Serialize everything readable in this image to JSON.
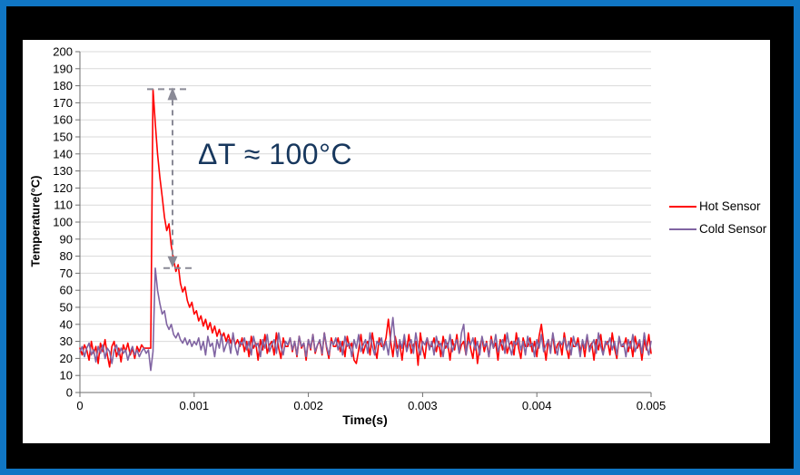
{
  "frame": {
    "border_color": "#1076C4",
    "mat_color": "#000000",
    "panel_color": "#FFFFFF"
  },
  "chart_data": {
    "type": "line",
    "title": "",
    "xlabel": "Time(s)",
    "ylabel": "Temperature(°C)",
    "xlim": [
      0,
      0.005
    ],
    "ylim": [
      0,
      200
    ],
    "grid": "horizontal",
    "gridline_color": "#D9D9D9",
    "axis_color": "#6E6E6E",
    "tick_label_color": "#000000",
    "y_tick_step": 10,
    "x_ticks": [
      0,
      0.001,
      0.002,
      0.003,
      0.004,
      0.005
    ],
    "x_tick_labels": [
      "0",
      "0.001",
      "0.002",
      "0.003",
      "0.004",
      "0.005"
    ],
    "legend_position": "right",
    "x_start": 0,
    "x_step": 2e-05,
    "annotation": {
      "text": "ΔT ≈ 100°C",
      "color": "#17375D",
      "arrow_color": "#8A8A96",
      "from_value": 178,
      "to_value": 73
    },
    "series": [
      {
        "name": "Hot Sensor",
        "color": "#FF0000",
        "peak_value": 178,
        "peak_time": 0.00064,
        "baseline": 26,
        "values": [
          26,
          22,
          28,
          25,
          19,
          30,
          23,
          27,
          17,
          29,
          24,
          31,
          22,
          15,
          27,
          30,
          21,
          26,
          18,
          28,
          24,
          29,
          22,
          26,
          20,
          27,
          24,
          28,
          26,
          26,
          26,
          26,
          178,
          158,
          140,
          126,
          115,
          103,
          95,
          99,
          86,
          78,
          71,
          75,
          64,
          59,
          62,
          54,
          50,
          53,
          46,
          48,
          42,
          45,
          39,
          43,
          37,
          41,
          35,
          39,
          33,
          37,
          32,
          35,
          30,
          34,
          29,
          33,
          28,
          31,
          27,
          32,
          24,
          30,
          21,
          33,
          26,
          29,
          19,
          31,
          25,
          34,
          23,
          28,
          30,
          22,
          35,
          26,
          20,
          32,
          27,
          27,
          32,
          24,
          30,
          21,
          33,
          26,
          29,
          19,
          31,
          25,
          34,
          23,
          28,
          30,
          22,
          35,
          26,
          20,
          32,
          27,
          27,
          32,
          24,
          30,
          21,
          33,
          26,
          29,
          19,
          17,
          25,
          34,
          23,
          28,
          30,
          22,
          35,
          26,
          20,
          32,
          27,
          27,
          32,
          43,
          30,
          21,
          33,
          26,
          29,
          19,
          31,
          25,
          34,
          23,
          28,
          30,
          16,
          35,
          26,
          20,
          32,
          27,
          27,
          32,
          24,
          30,
          21,
          33,
          26,
          29,
          19,
          31,
          25,
          34,
          23,
          28,
          30,
          22,
          35,
          26,
          20,
          32,
          17,
          27,
          32,
          24,
          30,
          21,
          33,
          26,
          29,
          19,
          31,
          25,
          34,
          23,
          28,
          30,
          22,
          35,
          26,
          20,
          32,
          27,
          27,
          32,
          24,
          30,
          21,
          33,
          40,
          29,
          19,
          31,
          25,
          34,
          23,
          28,
          30,
          22,
          35,
          26,
          20,
          32,
          27,
          27,
          32,
          24,
          30,
          21,
          33,
          26,
          29,
          19,
          31,
          25,
          34,
          23,
          28,
          30,
          22,
          35,
          26,
          20,
          32,
          27,
          27,
          32,
          24,
          30,
          21,
          33,
          26,
          29,
          19,
          31,
          25,
          34,
          23
        ]
      },
      {
        "name": "Cold Sensor",
        "color": "#8064A2",
        "peak_value": 73,
        "peak_time": 0.00066,
        "baseline": 25,
        "values": [
          24,
          27,
          21,
          26,
          29,
          22,
          25,
          18,
          27,
          23,
          28,
          20,
          26,
          24,
          17,
          25,
          28,
          22,
          26,
          23,
          25,
          19,
          24,
          27,
          22,
          25,
          21,
          24,
          26,
          23,
          25,
          13,
          24,
          73,
          60,
          52,
          46,
          48,
          40,
          37,
          40,
          34,
          32,
          35,
          31,
          29,
          32,
          28,
          31,
          27,
          30,
          28,
          32,
          25,
          30,
          22,
          33,
          27,
          29,
          21,
          31,
          26,
          34,
          24,
          28,
          31,
          23,
          35,
          27,
          22,
          30,
          28,
          32,
          25,
          30,
          22,
          33,
          27,
          29,
          21,
          31,
          26,
          34,
          24,
          28,
          31,
          23,
          35,
          27,
          22,
          30,
          28,
          32,
          25,
          30,
          22,
          33,
          27,
          29,
          21,
          31,
          26,
          34,
          24,
          28,
          31,
          23,
          35,
          27,
          22,
          30,
          28,
          32,
          25,
          30,
          22,
          33,
          27,
          29,
          21,
          31,
          26,
          34,
          24,
          28,
          31,
          23,
          35,
          27,
          22,
          30,
          28,
          32,
          25,
          30,
          22,
          33,
          44,
          29,
          21,
          31,
          26,
          34,
          24,
          28,
          31,
          23,
          35,
          27,
          22,
          30,
          28,
          32,
          25,
          30,
          22,
          33,
          27,
          29,
          21,
          31,
          26,
          34,
          24,
          28,
          31,
          23,
          35,
          40,
          22,
          30,
          28,
          32,
          25,
          30,
          22,
          33,
          27,
          29,
          21,
          31,
          26,
          34,
          24,
          28,
          31,
          23,
          35,
          27,
          22,
          30,
          28,
          32,
          25,
          30,
          22,
          33,
          27,
          29,
          21,
          31,
          26,
          34,
          24,
          28,
          31,
          23,
          35,
          27,
          22,
          30,
          28,
          32,
          25,
          30,
          22,
          33,
          27,
          29,
          21,
          31,
          26,
          34,
          24,
          28,
          31,
          23,
          35,
          27,
          22,
          30,
          28,
          32,
          25,
          30,
          22,
          33,
          27,
          29,
          21,
          31,
          26,
          34,
          24,
          28,
          31,
          23,
          35,
          27,
          22,
          30
        ]
      }
    ]
  }
}
